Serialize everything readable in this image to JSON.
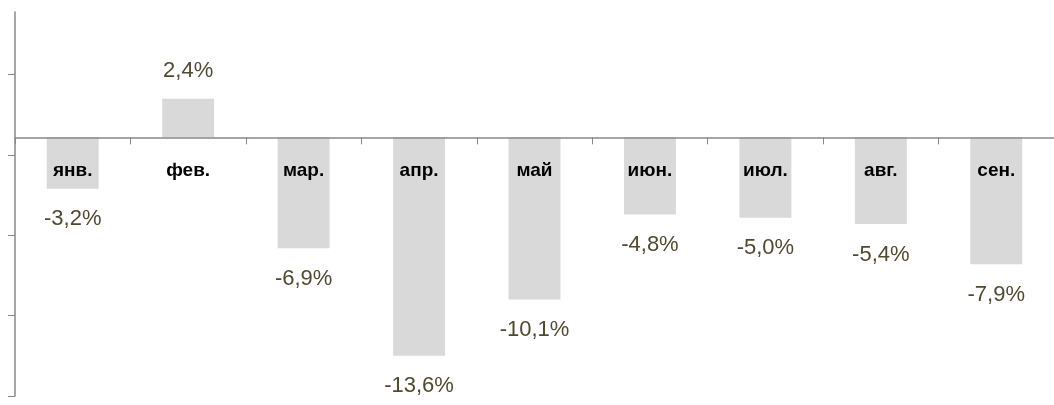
{
  "chart_data": {
    "type": "bar",
    "categories": [
      "янв.",
      "фев.",
      "мар.",
      "апр.",
      "май",
      "июн.",
      "июл.",
      "авг.",
      "сен."
    ],
    "values": [
      -3.2,
      2.4,
      -6.9,
      -13.6,
      -10.1,
      -4.8,
      -5.0,
      -5.4,
      -7.9
    ],
    "value_labels": [
      "-3,2%",
      "2,4%",
      "-6,9%",
      "-13,6%",
      "-10,1%",
      "-4,8%",
      "-5,0%",
      "-5,4%",
      "-7,9%"
    ],
    "color": "#d9d9d9",
    "ylim": [
      -16.1,
      7.8
    ],
    "yticks": [
      {
        "value": -16.1,
        "label": null
      },
      {
        "value": -11.1,
        "label": null
      },
      {
        "value": -6.1,
        "label": null
      },
      {
        "value": -1.1,
        "label": null
      },
      {
        "value": 3.9,
        "label": null
      }
    ],
    "tick_labels": "x",
    "grid": false
  }
}
